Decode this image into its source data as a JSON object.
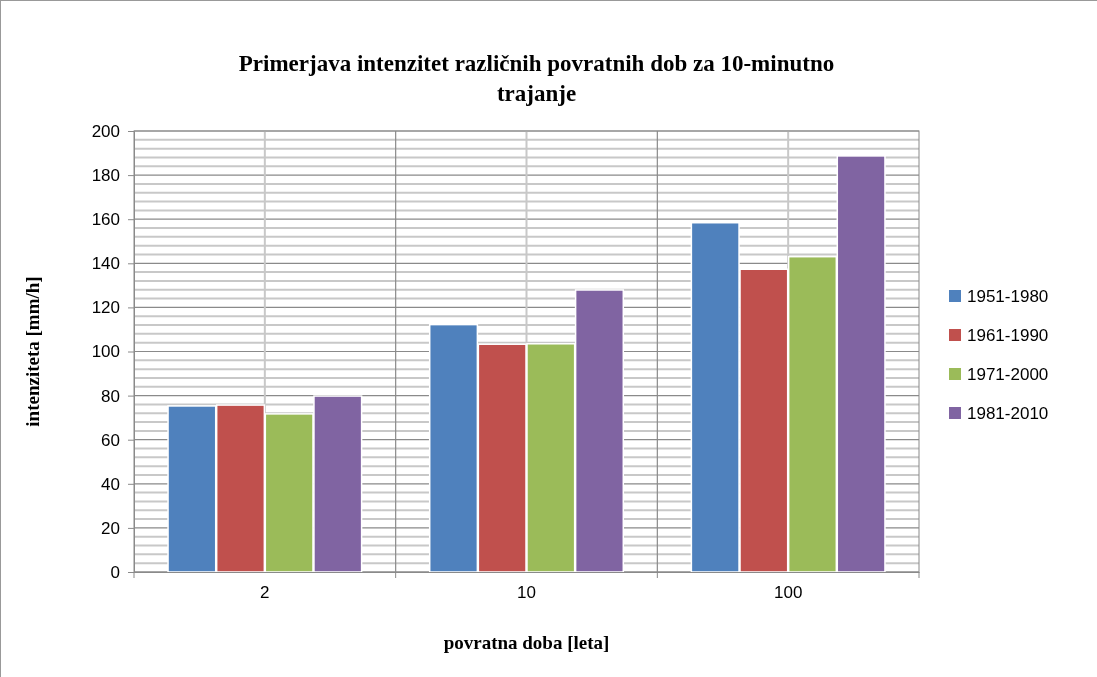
{
  "chart_data": {
    "type": "bar",
    "title": "Primerjava intenzitet različnih povratnih dob za 10-minutno trajanje",
    "xlabel": "povratna doba [leta]",
    "ylabel": "intenziteta [mm/h]",
    "categories": [
      "2",
      "10",
      "100"
    ],
    "series": [
      {
        "name": "1951-1980",
        "color": "#4f81bd",
        "values": [
          75.3,
          112.2,
          158.4
        ]
      },
      {
        "name": "1961-1990",
        "color": "#c0504d",
        "values": [
          75.7,
          103.3,
          137.3
        ]
      },
      {
        "name": "1971-2000",
        "color": "#9bbb59",
        "values": [
          71.7,
          103.5,
          143
        ]
      },
      {
        "name": "1981-2010",
        "color": "#8064a2",
        "values": [
          79.8,
          127.9,
          188.7
        ]
      }
    ],
    "ylim": [
      0,
      200
    ],
    "yticks": [
      0,
      20,
      40,
      60,
      80,
      100,
      120,
      140,
      160,
      180,
      200
    ],
    "grid": true,
    "legend": "right"
  }
}
